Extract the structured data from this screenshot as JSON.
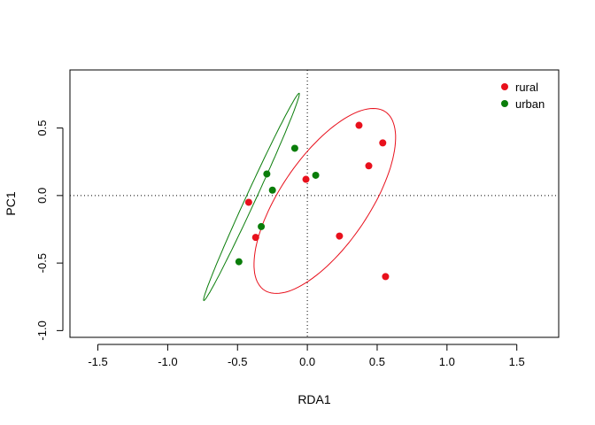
{
  "chart_data": {
    "type": "scatter",
    "xlabel": "RDA1",
    "ylabel": "PC1",
    "xlim": [
      -1.7,
      1.8
    ],
    "ylim": [
      -1.05,
      0.93
    ],
    "x_ticks": [
      -1.5,
      -1.0,
      -0.5,
      0.0,
      0.5,
      1.0,
      1.5
    ],
    "x_tick_labels": [
      "-1.5",
      "-1.0",
      "-0.5",
      "0.0",
      "0.5",
      "1.0",
      "1.5"
    ],
    "y_ticks": [
      -1.0,
      -0.5,
      0.0,
      0.5
    ],
    "y_tick_labels": [
      "-1.0",
      "-0.5",
      "0.0",
      "0.5"
    ],
    "reference_lines": {
      "x": 0,
      "y": 0,
      "style": "dotted"
    },
    "grid": false,
    "legend": {
      "position": "top-right"
    },
    "series": [
      {
        "name": "rural",
        "color": "#e8101c",
        "points": [
          {
            "x": 0.37,
            "y": 0.52
          },
          {
            "x": 0.54,
            "y": 0.39
          },
          {
            "x": 0.44,
            "y": 0.22
          },
          {
            "x": -0.01,
            "y": 0.12
          },
          {
            "x": -0.42,
            "y": -0.05
          },
          {
            "x": -0.37,
            "y": -0.31
          },
          {
            "x": 0.23,
            "y": -0.3
          },
          {
            "x": 0.56,
            "y": -0.6
          }
        ],
        "ellipse": {
          "cx": 0.125,
          "cy": -0.04,
          "rx": 0.79,
          "ry": 0.32,
          "angle_deg": 57
        }
      },
      {
        "name": "urban",
        "color": "#0a7d0a",
        "points": [
          {
            "x": -0.09,
            "y": 0.35
          },
          {
            "x": -0.29,
            "y": 0.16
          },
          {
            "x": 0.06,
            "y": 0.15
          },
          {
            "x": -0.25,
            "y": 0.04
          },
          {
            "x": -0.33,
            "y": -0.23
          },
          {
            "x": -0.49,
            "y": -0.49
          }
        ],
        "ellipse": {
          "cx": -0.4,
          "cy": -0.01,
          "rx": 0.84,
          "ry": 0.035,
          "angle_deg": 66
        }
      }
    ]
  }
}
